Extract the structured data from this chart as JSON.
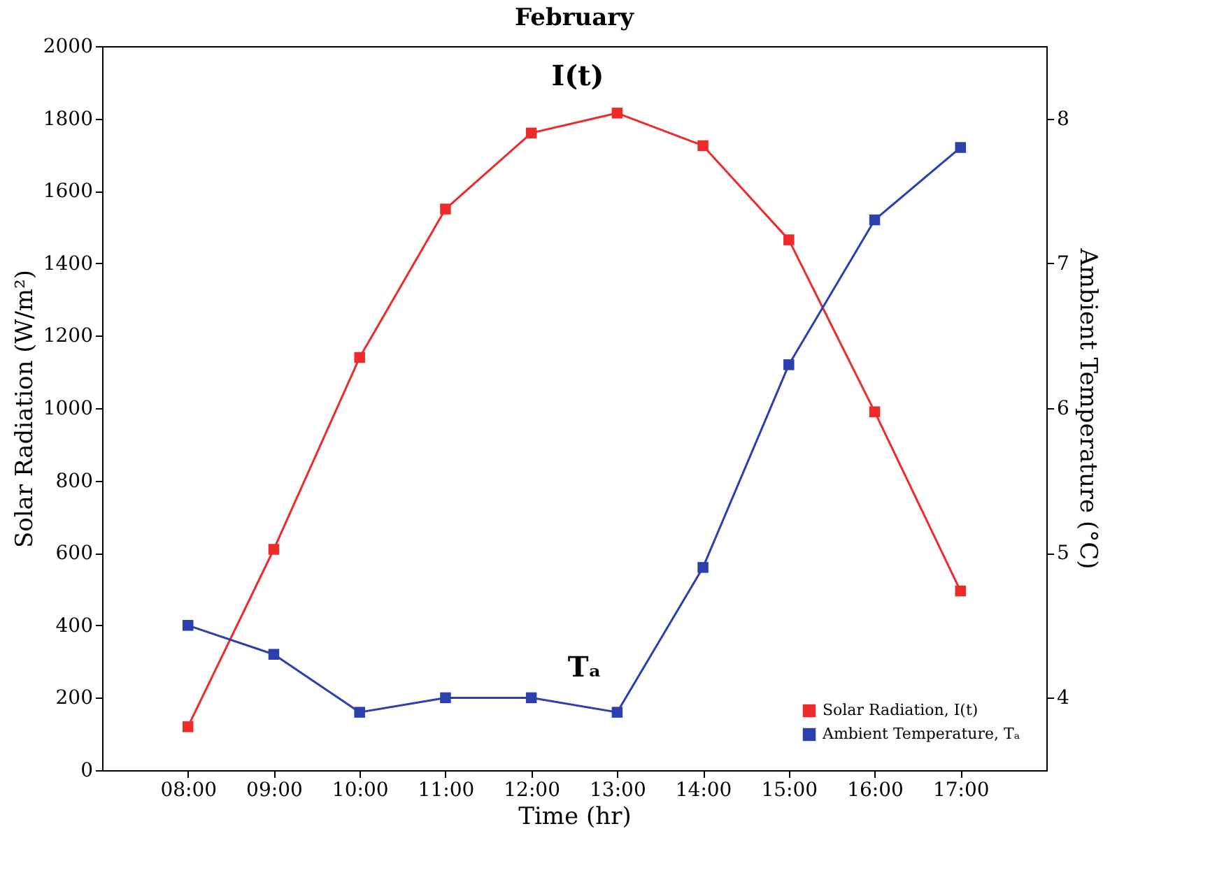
{
  "chart_data": {
    "type": "line",
    "title": "February",
    "xlabel": "Time (hr)",
    "ylabel": "Solar Radiation (W/m²)",
    "y2label": "Ambient Temperature (°C)",
    "categories": [
      "08:00",
      "09:00",
      "10:00",
      "11:00",
      "12:00",
      "13:00",
      "14:00",
      "15:00",
      "16:00",
      "17:00"
    ],
    "series": [
      {
        "name": "Solar Radiation, I(t)",
        "color": "#ee2b2b",
        "values": [
          120,
          610,
          1140,
          1550,
          1760,
          1815,
          1725,
          1465,
          990,
          495
        ]
      },
      {
        "name": "Ambient Temperature, Tₐ",
        "color": "#2b3fae",
        "axis": "y2",
        "values": [
          4.5,
          4.3,
          3.9,
          4.0,
          4.0,
          3.9,
          4.9,
          6.3,
          7.3,
          7.8
        ]
      }
    ],
    "ylim": [
      0,
      2000
    ],
    "yticks": [
      0,
      200,
      400,
      600,
      800,
      1000,
      1200,
      1400,
      1600,
      1800,
      2000
    ],
    "y2lim": [
      3.5,
      8.5
    ],
    "y2ticks": [
      4,
      5,
      6,
      7,
      8
    ],
    "annotations": [
      "I(t)",
      "Tₐ"
    ],
    "legend": "bottom right",
    "marker": "square",
    "line_style": "solid",
    "grid": false
  }
}
